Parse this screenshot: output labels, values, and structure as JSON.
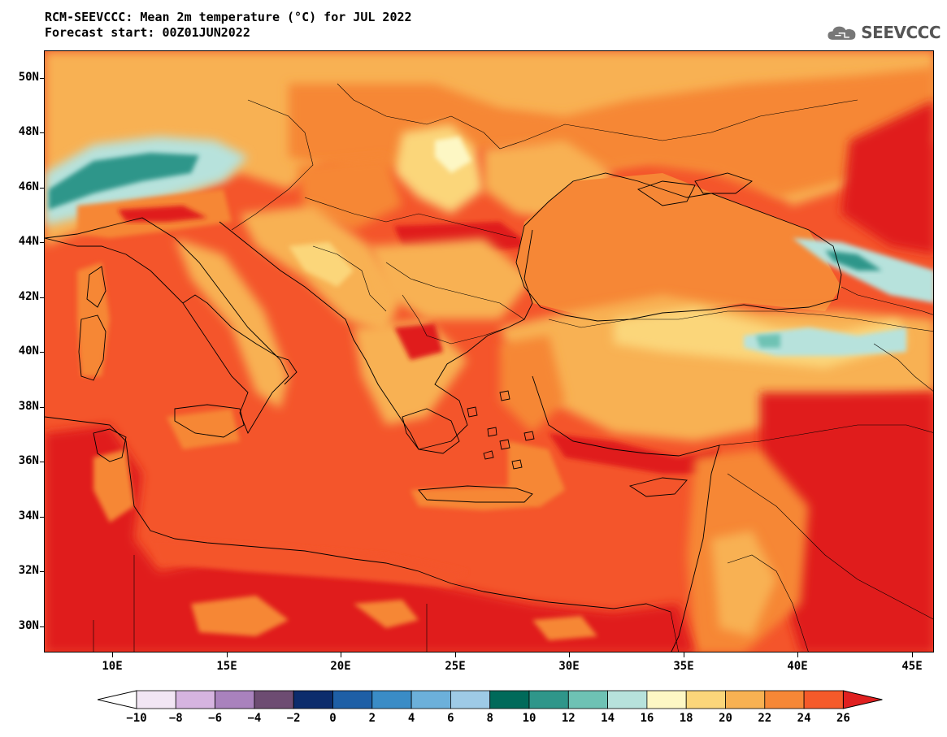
{
  "title": "RCM-SEEVCCC: Mean 2m temperature (°C) for JUL 2022",
  "subtitle": "Forecast start: 00Z01JUN2022",
  "logo": {
    "icon": "cloud-logo-icon",
    "text": "SEEVCCC"
  },
  "axes": {
    "lat_labels": [
      "50N",
      "48N",
      "46N",
      "44N",
      "42N",
      "40N",
      "38N",
      "36N",
      "34N",
      "32N",
      "30N"
    ],
    "lat_values": [
      50,
      48,
      46,
      44,
      42,
      40,
      38,
      36,
      34,
      32,
      30
    ],
    "lon_labels": [
      "10E",
      "15E",
      "20E",
      "25E",
      "30E",
      "35E",
      "40E",
      "45E"
    ],
    "lon_values": [
      10,
      15,
      20,
      25,
      30,
      35,
      40,
      45
    ],
    "lon_range": [
      7,
      46
    ],
    "lat_range": [
      29,
      51
    ]
  },
  "colorbar": {
    "labels": [
      "−10",
      "−8",
      "−6",
      "−4",
      "−2",
      "0",
      "2",
      "4",
      "6",
      "8",
      "10",
      "12",
      "14",
      "16",
      "18",
      "20",
      "22",
      "24",
      "26"
    ],
    "colors": [
      "#f2e6f4",
      "#d6b4e0",
      "#a982bd",
      "#6d4c72",
      "#0c2c6c",
      "#1e5fa6",
      "#3a8cc6",
      "#6cb0da",
      "#9ecae6",
      "#006a5a",
      "#2f968a",
      "#6ec2b4",
      "#b7e2dc",
      "#fdf7c4",
      "#fbd67a",
      "#f8b152",
      "#f68736",
      "#f55a2a"
    ],
    "under_color": "#ffffff",
    "over_color": "#e02020"
  },
  "regions": {
    "sea_color": "#f4552b",
    "land_warm": "#f8b152",
    "land_hot": "#e01d1d",
    "mountain_cool": "#b7e2dc",
    "alps_cold": "#2f968a",
    "black_sea": "#f68736"
  }
}
